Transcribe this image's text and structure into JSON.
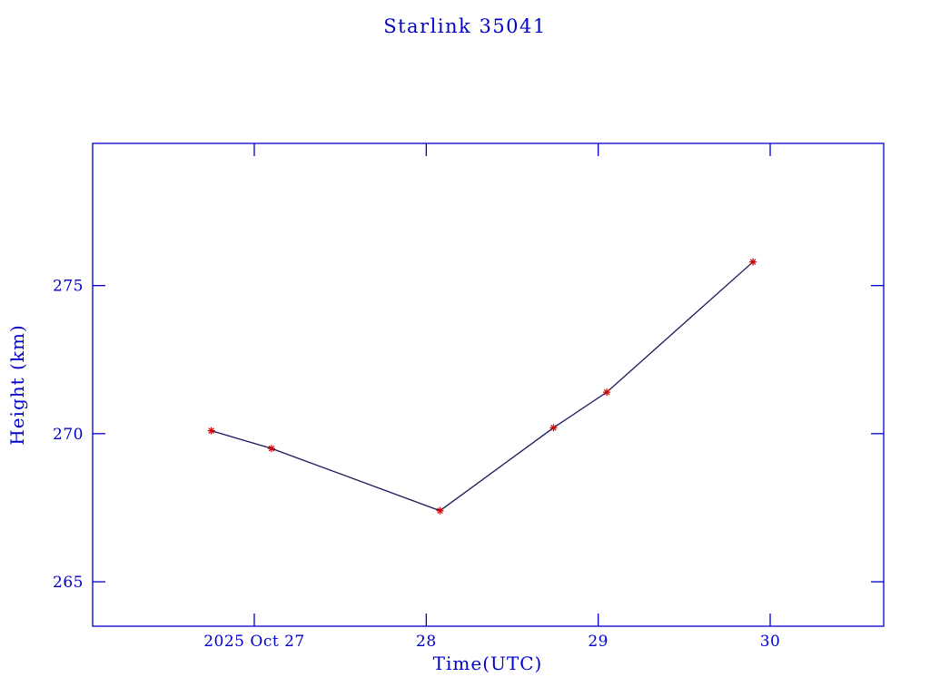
{
  "chart_data": {
    "type": "line",
    "title": "Starlink 35041",
    "xlabel": "Time(UTC)",
    "ylabel": "Height (km)",
    "x_units": "day of October 2025, UTC",
    "x": [
      26.75,
      27.1,
      28.08,
      28.74,
      29.05,
      29.9
    ],
    "y": [
      270.1,
      269.5,
      267.4,
      270.2,
      271.4,
      275.8
    ],
    "xlim": [
      26.06,
      30.66
    ],
    "ylim": [
      263.5,
      279.8
    ],
    "x_ticks": [
      {
        "value": 27,
        "label": "2025 Oct 27"
      },
      {
        "value": 28,
        "label": "28"
      },
      {
        "value": 29,
        "label": "29"
      },
      {
        "value": 30,
        "label": "30"
      }
    ],
    "y_ticks": [
      {
        "value": 265,
        "label": "265"
      },
      {
        "value": 270,
        "label": "270"
      },
      {
        "value": 275,
        "label": "275"
      }
    ],
    "grid": false,
    "legend": "none",
    "marker": "red-asterisk",
    "colors": {
      "frame": "#0000cd",
      "text": "#0000cd",
      "line": "#17175c",
      "marker": "#cc0000",
      "background": "#ffffff"
    }
  }
}
